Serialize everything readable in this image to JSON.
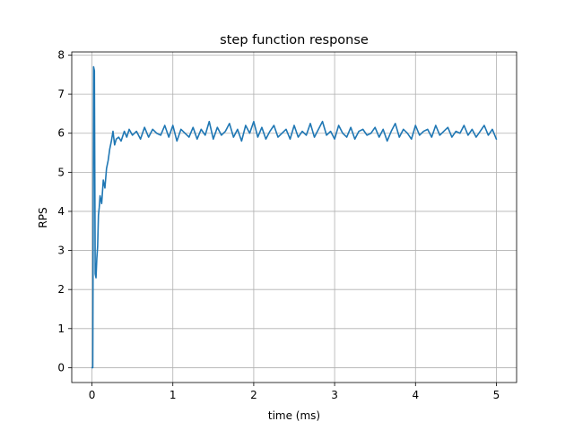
{
  "chart_data": {
    "type": "line",
    "title": "step function response",
    "xlabel": "time (ms)",
    "ylabel": "RPS",
    "xlim": [
      -0.25,
      5.25
    ],
    "ylim": [
      -0.38,
      8.08
    ],
    "xticks": [
      0,
      1,
      2,
      3,
      4,
      5
    ],
    "xtick_labels": [
      "0",
      "1",
      "2",
      "3",
      "4",
      "5"
    ],
    "yticks": [
      0,
      1,
      2,
      3,
      4,
      5,
      6,
      7,
      8
    ],
    "ytick_labels": [
      "0",
      "1",
      "2",
      "3",
      "4",
      "5",
      "6",
      "7",
      "8"
    ],
    "grid": true,
    "legend": "none",
    "series": [
      {
        "color": "#1f77b4",
        "x": [
          0.0,
          0.01,
          0.02,
          0.03,
          0.04,
          0.05,
          0.06,
          0.07,
          0.08,
          0.09,
          0.1,
          0.12,
          0.14,
          0.16,
          0.18,
          0.2,
          0.22,
          0.24,
          0.26,
          0.28,
          0.3,
          0.33,
          0.36,
          0.4,
          0.43,
          0.46,
          0.5,
          0.55,
          0.6,
          0.65,
          0.7,
          0.75,
          0.8,
          0.85,
          0.9,
          0.95,
          1.0,
          1.05,
          1.1,
          1.15,
          1.2,
          1.25,
          1.3,
          1.35,
          1.4,
          1.45,
          1.5,
          1.55,
          1.6,
          1.65,
          1.7,
          1.75,
          1.8,
          1.85,
          1.9,
          1.95,
          2.0,
          2.05,
          2.1,
          2.15,
          2.2,
          2.25,
          2.3,
          2.35,
          2.4,
          2.45,
          2.5,
          2.55,
          2.6,
          2.65,
          2.7,
          2.75,
          2.8,
          2.85,
          2.9,
          2.95,
          3.0,
          3.05,
          3.1,
          3.15,
          3.2,
          3.25,
          3.3,
          3.35,
          3.4,
          3.45,
          3.5,
          3.55,
          3.6,
          3.65,
          3.7,
          3.75,
          3.8,
          3.85,
          3.9,
          3.95,
          4.0,
          4.05,
          4.1,
          4.15,
          4.2,
          4.25,
          4.3,
          4.35,
          4.4,
          4.45,
          4.5,
          4.55,
          4.6,
          4.65,
          4.7,
          4.75,
          4.8,
          4.85,
          4.9,
          4.95,
          5.0
        ],
        "y": [
          0.0,
          0.0,
          7.7,
          7.6,
          2.4,
          2.3,
          2.8,
          3.1,
          3.9,
          4.1,
          4.4,
          4.2,
          4.8,
          4.6,
          5.1,
          5.3,
          5.6,
          5.8,
          6.05,
          5.7,
          5.85,
          5.9,
          5.8,
          6.05,
          5.9,
          6.1,
          5.95,
          6.05,
          5.85,
          6.15,
          5.9,
          6.1,
          6.0,
          5.95,
          6.2,
          5.9,
          6.2,
          5.8,
          6.1,
          6.0,
          5.9,
          6.15,
          5.85,
          6.1,
          5.95,
          6.3,
          5.85,
          6.15,
          5.95,
          6.05,
          6.25,
          5.9,
          6.1,
          5.8,
          6.2,
          6.0,
          6.3,
          5.9,
          6.15,
          5.85,
          6.05,
          6.2,
          5.9,
          6.0,
          6.1,
          5.85,
          6.2,
          5.9,
          6.05,
          5.95,
          6.25,
          5.9,
          6.1,
          6.3,
          5.95,
          6.05,
          5.85,
          6.2,
          6.0,
          5.9,
          6.15,
          5.85,
          6.05,
          6.1,
          5.95,
          6.0,
          6.15,
          5.9,
          6.1,
          5.8,
          6.05,
          6.25,
          5.9,
          6.1,
          6.0,
          5.85,
          6.2,
          5.95,
          6.05,
          6.1,
          5.9,
          6.2,
          5.95,
          6.05,
          6.15,
          5.9,
          6.05,
          6.0,
          6.2,
          5.95,
          6.1,
          5.9,
          6.05,
          6.2,
          5.95,
          6.1,
          5.85
        ]
      }
    ]
  }
}
